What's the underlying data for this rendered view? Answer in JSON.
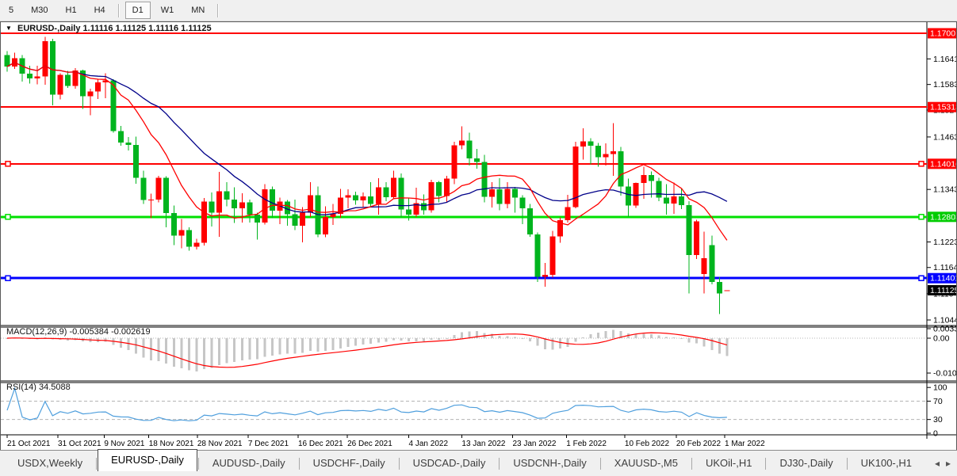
{
  "toolbar": {
    "timeframes": [
      {
        "label": "5",
        "active": false
      },
      {
        "label": "M30",
        "active": false
      },
      {
        "label": "H1",
        "active": false
      },
      {
        "label": "H4",
        "active": false,
        "sep_after": true
      },
      {
        "label": "D1",
        "active": true
      },
      {
        "label": "W1",
        "active": false
      },
      {
        "label": "MN",
        "active": false,
        "sep_after": true
      }
    ]
  },
  "chart": {
    "title": {
      "dropdown_icon": "▼",
      "symbol": "EURUSD-,Daily",
      "ohlc": "1.11116 1.11125 1.11116 1.11125"
    },
    "indicators": {
      "macd_label": "MACD(12,26,9) -0.005384 -0.002619",
      "rsi_label": "RSI(14) 34.5088"
    }
  },
  "chart_data": {
    "type": "candlestick",
    "symbol": "EURUSD-",
    "timeframe": "Daily",
    "current_bar": {
      "open": 1.11116,
      "high": 1.11125,
      "low": 1.11116,
      "close": 1.11125
    },
    "price_range_visible": [
      1.1032,
      1.1725
    ],
    "colors": {
      "bull": "#ff0000",
      "bear": "#00b41e",
      "ma_fast": "#ff0000",
      "ma_slow": "#000089",
      "level_red": "#ff0000",
      "level_green": "#00e000",
      "level_blue": "#0000ff",
      "macd_hist": "#c6c6c6",
      "macd_signal": "#ff0000",
      "rsi_line": "#4f9fdd",
      "dashed_level": "#b4b4b4",
      "current_label_bg": "#000000"
    },
    "levels": [
      {
        "price": 1.17001,
        "color": "#ff0000",
        "width": 2,
        "handles": false
      },
      {
        "price": 1.15313,
        "color": "#ff0000",
        "width": 2,
        "handles": false
      },
      {
        "price": 1.14016,
        "color": "#ff0000",
        "width": 2,
        "handles": true
      },
      {
        "price": 1.12803,
        "color": "#00e000",
        "width": 3,
        "handles": true
      },
      {
        "price": 1.11401,
        "color": "#0000ff",
        "width": 3,
        "handles": true
      }
    ],
    "price_axis": {
      "plain_ticks": [
        1.16415,
        1.1583,
        1.15245,
        1.1463,
        1.1343,
        1.1223,
        1.11645,
        1.11045,
        1.10445
      ],
      "highlight_ticks": [
        {
          "label": "1.17001",
          "price": 1.17001,
          "bg": "#ff0000"
        },
        {
          "label": "1.15313",
          "price": 1.15313,
          "bg": "#ff0000"
        },
        {
          "label": "1.14016",
          "price": 1.14016,
          "bg": "#ff0000"
        },
        {
          "label": "1.12803",
          "price": 1.12803,
          "bg": "#00cc00"
        },
        {
          "label": "1.11401",
          "price": 1.11401,
          "bg": "#0000ff"
        },
        {
          "label": "1.11125",
          "price": 1.11125,
          "bg": "#000000",
          "current": true
        }
      ]
    },
    "time_axis": {
      "labels": [
        {
          "text": "21 Oct 2021",
          "bar": 0
        },
        {
          "text": "31 Oct 2021",
          "bar": 6.7
        },
        {
          "text": "9 Nov 2021",
          "bar": 12.8
        },
        {
          "text": "18 Nov 2021",
          "bar": 18.7
        },
        {
          "text": "28 Nov 2021",
          "bar": 25.1
        },
        {
          "text": "7 Dec 2021",
          "bar": 31.8
        },
        {
          "text": "16 Dec 2021",
          "bar": 38.4
        },
        {
          "text": "26 Dec 2021",
          "bar": 44.9
        },
        {
          "text": "4 Jan 2022",
          "bar": 53.0
        },
        {
          "text": "13 Jan 2022",
          "bar": 60.0
        },
        {
          "text": "23 Jan 2022",
          "bar": 66.7
        },
        {
          "text": "1 Feb 2022",
          "bar": 73.8
        },
        {
          "text": "10 Feb 2022",
          "bar": 81.5
        },
        {
          "text": "20 Feb 2022",
          "bar": 88.3
        },
        {
          "text": "1 Mar 2022",
          "bar": 94.7
        }
      ]
    },
    "macd": {
      "params": "12,26,9",
      "value": -0.005384,
      "signal": -0.002619,
      "scale_ticks": [
        {
          "label": "0.003331",
          "value": 0.003331
        },
        {
          "label": "0.00",
          "value": 0
        },
        {
          "label": "-0.010433",
          "value": -0.010433
        }
      ]
    },
    "rsi": {
      "period": 14,
      "value": 34.5088,
      "dashed_levels": [
        70,
        30
      ],
      "scale_ticks": [
        {
          "label": "100",
          "value": 100
        },
        {
          "label": "70",
          "value": 70
        },
        {
          "label": "30",
          "value": 30
        },
        {
          "label": "0",
          "value": 0
        }
      ]
    },
    "candles": [
      [
        1.165,
        1.1659,
        1.1612,
        1.1624
      ],
      [
        1.1624,
        1.1656,
        1.1619,
        1.1643
      ],
      [
        1.1643,
        1.165,
        1.159,
        1.1608
      ],
      [
        1.1608,
        1.1626,
        1.1585,
        1.1597
      ],
      [
        1.1597,
        1.1626,
        1.1583,
        1.1601
      ],
      [
        1.1601,
        1.1692,
        1.1582,
        1.1682
      ],
      [
        1.1682,
        1.1687,
        1.1535,
        1.156
      ],
      [
        1.156,
        1.1609,
        1.1549,
        1.1605
      ],
      [
        1.1605,
        1.1614,
        1.1575,
        1.158
      ],
      [
        1.158,
        1.162,
        1.1573,
        1.1615
      ],
      [
        1.1615,
        1.1617,
        1.1527,
        1.1556
      ],
      [
        1.1556,
        1.1573,
        1.1513,
        1.1567
      ],
      [
        1.1567,
        1.1594,
        1.155,
        1.1588
      ],
      [
        1.1588,
        1.1609,
        1.1552,
        1.1592
      ],
      [
        1.1592,
        1.1595,
        1.1473,
        1.1476
      ],
      [
        1.1476,
        1.1488,
        1.1443,
        1.145
      ],
      [
        1.145,
        1.1463,
        1.1432,
        1.1445
      ],
      [
        1.1445,
        1.1464,
        1.1356,
        1.137
      ],
      [
        1.137,
        1.1386,
        1.131,
        1.1319
      ],
      [
        1.1319,
        1.1333,
        1.1277,
        1.132
      ],
      [
        1.132,
        1.1374,
        1.1313,
        1.137
      ],
      [
        1.137,
        1.1373,
        1.1256,
        1.1289
      ],
      [
        1.1289,
        1.1306,
        1.1216,
        1.1237
      ],
      [
        1.1237,
        1.1275,
        1.1208,
        1.125
      ],
      [
        1.125,
        1.1256,
        1.1203,
        1.1212
      ],
      [
        1.1212,
        1.123,
        1.1206,
        1.1221
      ],
      [
        1.1221,
        1.1323,
        1.1215,
        1.1315
      ],
      [
        1.1315,
        1.1336,
        1.1258,
        1.129
      ],
      [
        1.129,
        1.1383,
        1.1235,
        1.1339
      ],
      [
        1.1339,
        1.136,
        1.1304,
        1.132
      ],
      [
        1.132,
        1.1348,
        1.1266,
        1.13
      ],
      [
        1.13,
        1.1334,
        1.1267,
        1.1313
      ],
      [
        1.1313,
        1.132,
        1.1267,
        1.1285
      ],
      [
        1.1285,
        1.129,
        1.1228,
        1.1267
      ],
      [
        1.1267,
        1.1355,
        1.1263,
        1.1343
      ],
      [
        1.1343,
        1.135,
        1.1277,
        1.1294
      ],
      [
        1.1294,
        1.1324,
        1.1264,
        1.1315
      ],
      [
        1.1315,
        1.1319,
        1.126,
        1.1286
      ],
      [
        1.1286,
        1.132,
        1.125,
        1.126
      ],
      [
        1.126,
        1.1303,
        1.1222,
        1.129
      ],
      [
        1.129,
        1.136,
        1.128,
        1.133
      ],
      [
        1.133,
        1.135,
        1.1234,
        1.124
      ],
      [
        1.124,
        1.1304,
        1.1234,
        1.128
      ],
      [
        1.128,
        1.131,
        1.1262,
        1.1287
      ],
      [
        1.1287,
        1.1344,
        1.1278,
        1.1324
      ],
      [
        1.1324,
        1.1343,
        1.13,
        1.133
      ],
      [
        1.133,
        1.1338,
        1.1308,
        1.1318
      ],
      [
        1.1318,
        1.1336,
        1.1302,
        1.1327
      ],
      [
        1.1327,
        1.136,
        1.1304,
        1.131
      ],
      [
        1.131,
        1.1369,
        1.1285,
        1.1348
      ],
      [
        1.1348,
        1.136,
        1.1316,
        1.1325
      ],
      [
        1.1325,
        1.1386,
        1.1321,
        1.137
      ],
      [
        1.137,
        1.138,
        1.1279,
        1.1297
      ],
      [
        1.1297,
        1.1323,
        1.1272,
        1.1285
      ],
      [
        1.1285,
        1.1347,
        1.128,
        1.1312
      ],
      [
        1.1312,
        1.1332,
        1.1285,
        1.1295
      ],
      [
        1.1295,
        1.1365,
        1.129,
        1.136
      ],
      [
        1.136,
        1.1362,
        1.1313,
        1.1328
      ],
      [
        1.1328,
        1.1374,
        1.1314,
        1.1368
      ],
      [
        1.1368,
        1.1452,
        1.1355,
        1.1444
      ],
      [
        1.1444,
        1.1487,
        1.1435,
        1.1455
      ],
      [
        1.1455,
        1.1473,
        1.1398,
        1.1414
      ],
      [
        1.1414,
        1.1436,
        1.139,
        1.1406
      ],
      [
        1.1406,
        1.1422,
        1.1313,
        1.1326
      ],
      [
        1.1326,
        1.136,
        1.1302,
        1.1343
      ],
      [
        1.1343,
        1.1369,
        1.1295,
        1.131
      ],
      [
        1.131,
        1.136,
        1.13,
        1.1344
      ],
      [
        1.1344,
        1.1349,
        1.129,
        1.1324
      ],
      [
        1.1324,
        1.133,
        1.1264,
        1.13
      ],
      [
        1.13,
        1.131,
        1.1235,
        1.124
      ],
      [
        1.124,
        1.1245,
        1.1131,
        1.1143
      ],
      [
        1.1143,
        1.1175,
        1.1121,
        1.1148
      ],
      [
        1.1148,
        1.1248,
        1.1141,
        1.1236
      ],
      [
        1.1236,
        1.1279,
        1.1221,
        1.1273
      ],
      [
        1.1273,
        1.1331,
        1.1267,
        1.1303
      ],
      [
        1.1303,
        1.1452,
        1.13,
        1.1441
      ],
      [
        1.1441,
        1.1483,
        1.1411,
        1.1453
      ],
      [
        1.1453,
        1.146,
        1.14,
        1.1443
      ],
      [
        1.1443,
        1.1449,
        1.1395,
        1.1417
      ],
      [
        1.1417,
        1.1448,
        1.1398,
        1.1424
      ],
      [
        1.1424,
        1.1495,
        1.1374,
        1.143
      ],
      [
        1.143,
        1.144,
        1.1329,
        1.135
      ],
      [
        1.135,
        1.1368,
        1.128,
        1.1306
      ],
      [
        1.1306,
        1.1359,
        1.1301,
        1.1358
      ],
      [
        1.1358,
        1.1395,
        1.1322,
        1.1376
      ],
      [
        1.1376,
        1.1384,
        1.1324,
        1.1362
      ],
      [
        1.1362,
        1.137,
        1.1316,
        1.1324
      ],
      [
        1.1324,
        1.1355,
        1.1285,
        1.1311
      ],
      [
        1.1311,
        1.1359,
        1.1287,
        1.1327
      ],
      [
        1.1327,
        1.1345,
        1.1298,
        1.1307
      ],
      [
        1.1307,
        1.1316,
        1.1105,
        1.1193
      ],
      [
        1.1193,
        1.1274,
        1.1184,
        1.127
      ],
      [
        1.115,
        1.1246,
        1.1105,
        1.1186
      ],
      [
        1.1216,
        1.1237,
        1.1126,
        1.1131
      ],
      [
        1.1131,
        1.1142,
        1.1058,
        1.1105
      ],
      [
        1.11116,
        1.11125,
        1.11116,
        1.11125
      ]
    ]
  },
  "tabs": {
    "items": [
      {
        "label": "USDX,Weekly",
        "active": false
      },
      {
        "label": "EURUSD-,Daily",
        "active": true
      },
      {
        "label": "AUDUSD-,Daily",
        "active": false
      },
      {
        "label": "USDCHF-,Daily",
        "active": false
      },
      {
        "label": "USDCAD-,Daily",
        "active": false
      },
      {
        "label": "USDCNH-,Daily",
        "active": false
      },
      {
        "label": "XAUUSD-,M5",
        "active": false
      },
      {
        "label": "UKOil-,H1",
        "active": false
      },
      {
        "label": "DJ30-,Daily",
        "active": false
      },
      {
        "label": "UK100-,H1",
        "active": false
      }
    ],
    "scroll_left_icon": "◂",
    "scroll_right_icon": "▸"
  }
}
